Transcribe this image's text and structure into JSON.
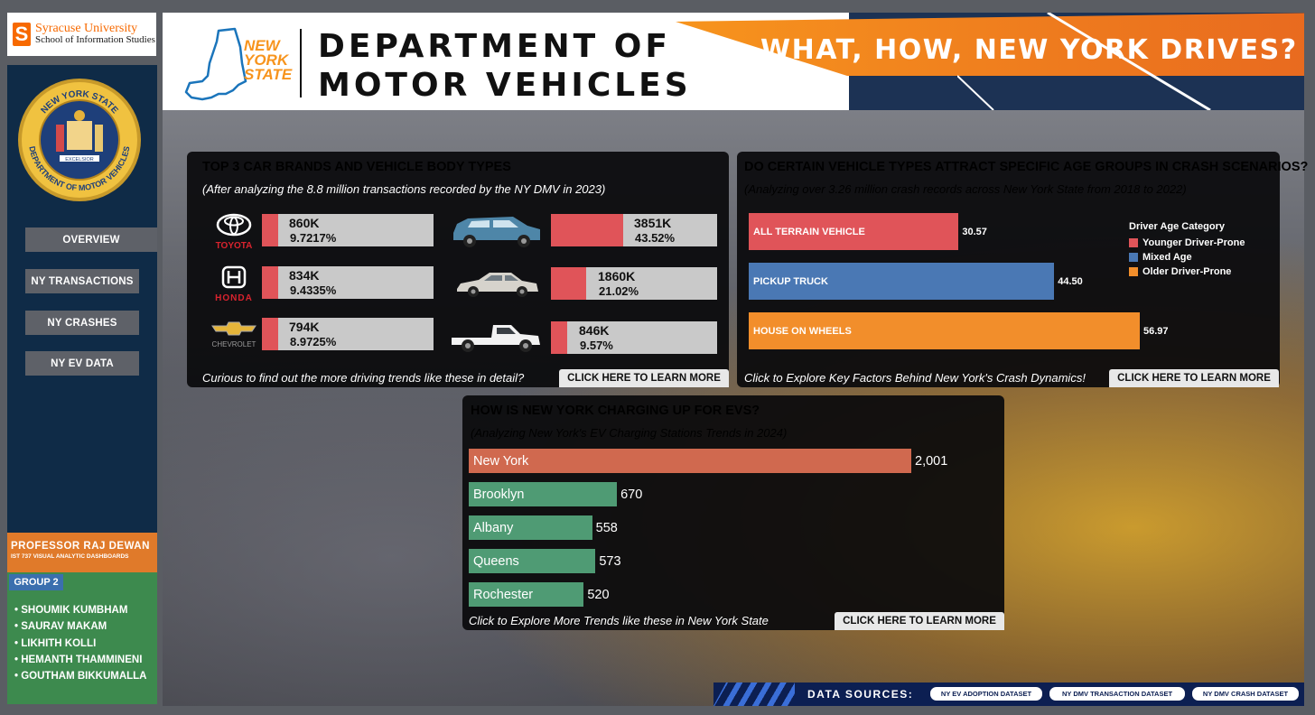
{
  "university": {
    "line1": "Syracuse University",
    "line2": "School of Information Studies",
    "logo_letter": "S"
  },
  "seal": {
    "top_text": "NEW YORK STATE",
    "bottom_text": "DEPARTMENT OF MOTOR VEHICLES",
    "motto": "EXCELSIOR"
  },
  "nav": {
    "items": [
      {
        "label": "OVERVIEW"
      },
      {
        "label": "NY TRANSACTIONS"
      },
      {
        "label": "NY CRASHES"
      },
      {
        "label": "NY EV DATA"
      }
    ]
  },
  "professor": {
    "name": "PROFESSOR RAJ DEWAN",
    "course": "IST 737 VISUAL ANALYTIC DASHBOARDS"
  },
  "group": {
    "label": "GROUP 2",
    "members": [
      "SHOUMIK KUMBHAM",
      "SAURAV MAKAM",
      "LIKHITH KOLLI",
      "HEMANTH THAMMINENI",
      "GOUTHAM BIKKUMALLA"
    ]
  },
  "header": {
    "nys_line1": "NEW",
    "nys_line2": "YORK",
    "nys_line3": "STATE",
    "dept_line1": "DEPARTMENT OF",
    "dept_line2": "MOTOR VEHICLES",
    "tagline": "WHAT, HOW, NEW YORK DRIVES?"
  },
  "brands_panel": {
    "title": "TOP 3 CAR BRANDS AND VEHICLE BODY TYPES",
    "subtitle": "(After analyzing the 8.8 million transactions recorded by the NY DMV in 2023)",
    "brands": [
      {
        "logo_text": "TOYOTA",
        "value": "860K",
        "pct": "9.7217%",
        "pct_num": 9.7217,
        "color": "#d9232e"
      },
      {
        "logo_text": "HONDA",
        "value": "834K",
        "pct": "9.4335%",
        "pct_num": 9.4335,
        "color": "#d9232e"
      },
      {
        "logo_text": "CHEVROLET",
        "value": "794K",
        "pct": "8.9725%",
        "pct_num": 8.9725,
        "color": "#9a9a9a"
      }
    ],
    "body_types": [
      {
        "icon": "suv-icon",
        "value": "3851K",
        "pct": "43.52%",
        "pct_num": 43.52
      },
      {
        "icon": "sedan-icon",
        "value": "1860K",
        "pct": "21.02%",
        "pct_num": 21.02
      },
      {
        "icon": "pickup-icon",
        "value": "846K",
        "pct": "9.57%",
        "pct_num": 9.57
      }
    ],
    "footer_text": "Curious to find out the more driving trends like these in detail?",
    "button": "CLICK HERE TO LEARN MORE"
  },
  "crash_panel": {
    "title": "DO CERTAIN VEHICLE TYPES ATTRACT SPECIFIC AGE GROUPS IN CRASH SCENARIOS?",
    "subtitle": "(Analyzing over 3.26 million crash records across New York State from 2018 to 2022)",
    "legend_title": "Driver Age Category",
    "legend": [
      {
        "label": "Younger Driver-Prone",
        "color": "#e05459"
      },
      {
        "label": "Mixed Age",
        "color": "#4a78b4"
      },
      {
        "label": "Older Driver-Prone",
        "color": "#f28e2b"
      }
    ],
    "footer_text": "Click to Explore Key Factors Behind New York's Crash Dynamics!",
    "button": "CLICK HERE TO LEARN MORE"
  },
  "ev_panel": {
    "title": "HOW IS NEW YORK CHARGING UP FOR EVS?",
    "subtitle": "(Analyzing New York's EV Charging Stations Trends in 2024)",
    "footer_text": "Click to Explore More Trends like these in New York State",
    "button": "CLICK HERE TO LEARN MORE"
  },
  "chart_data": [
    {
      "type": "bar",
      "categories": [
        "ALL TERRAIN VEHICLE",
        "PICKUP TRUCK",
        "HOUSE ON WHEELS"
      ],
      "values": [
        30.57,
        44.5,
        56.97
      ],
      "value_labels": [
        "30.57",
        "44.50",
        "56.97"
      ],
      "colors": [
        "#e05459",
        "#4a78b4",
        "#f28e2b"
      ],
      "orientation": "horizontal"
    },
    {
      "type": "bar",
      "categories": [
        "New York",
        "Brooklyn",
        "Albany",
        "Queens",
        "Rochester"
      ],
      "values": [
        2001,
        670,
        558,
        573,
        520
      ],
      "value_labels": [
        "2,001",
        "670",
        "558",
        "573",
        "520"
      ],
      "colors": [
        "#d0694f",
        "#4f9b74",
        "#4f9b74",
        "#4f9b74",
        "#4f9b74"
      ],
      "orientation": "horizontal"
    }
  ],
  "data_sources": {
    "label": "DATA SOURCES:",
    "items": [
      "NY EV ADOPTION DATASET",
      "NY DMV TRANSACTION DATASET",
      "NY DMV CRASH DATASET"
    ]
  }
}
